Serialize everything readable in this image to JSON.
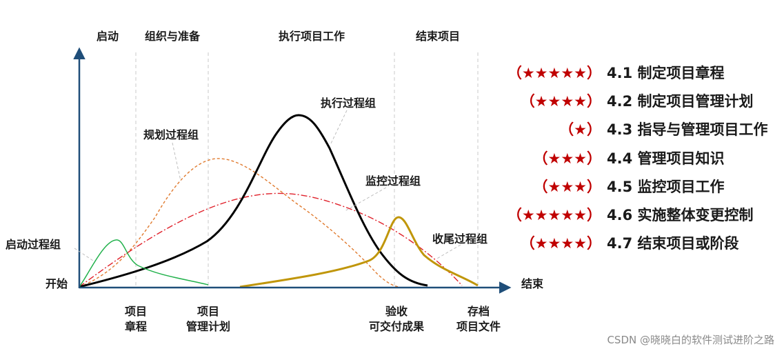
{
  "phases": [
    "启动",
    "组织与准备",
    "执行项目工作",
    "结束项目"
  ],
  "axis": {
    "start": "开始",
    "end": "结束"
  },
  "curves": {
    "initiating": "启动过程组",
    "planning": "规划过程组",
    "executing": "执行过程组",
    "monitoring": "监控过程组",
    "closing": "收尾过程组"
  },
  "milestones": [
    {
      "line1": "项目",
      "line2": "章程"
    },
    {
      "line1": "项目",
      "line2": "管理计划"
    },
    {
      "line1": "验收",
      "line2": "可交付成果"
    },
    {
      "line1": "存档",
      "line2": "项目文件"
    }
  ],
  "processes": [
    {
      "stars": "（★★★★★）",
      "label": "4.1 制定项目章程"
    },
    {
      "stars": "（★★★★）",
      "label": "4.2 制定项目管理计划"
    },
    {
      "stars": "（★）",
      "label": "4.3 指导与管理项目工作"
    },
    {
      "stars": "（★★★）",
      "label": "4.4 管理项目知识"
    },
    {
      "stars": "（★★★）",
      "label": "4.5 监控项目工作"
    },
    {
      "stars": "（★★★★★）",
      "label": "4.6 实施整体变更控制"
    },
    {
      "stars": "（★★★★）",
      "label": "4.7 结束项目或阶段"
    }
  ],
  "watermark": "CSDN @晓晓白的软件测试进阶之路",
  "colors": {
    "axis": "#1f4e79",
    "initiating": "#22b14c",
    "planning": "#e07a2e",
    "executing": "#000000",
    "monitoring": "#e0202a",
    "closing": "#c0960a",
    "stars": "#c00000"
  }
}
